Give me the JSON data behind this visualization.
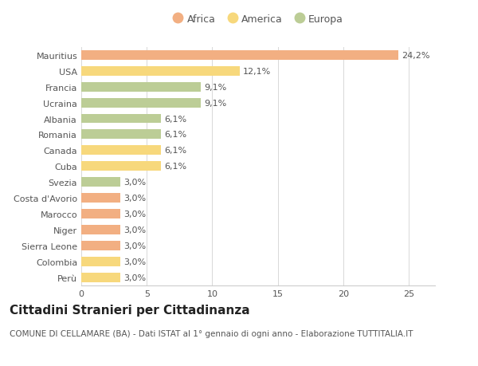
{
  "categories": [
    "Mauritius",
    "USA",
    "Francia",
    "Ucraina",
    "Albania",
    "Romania",
    "Canada",
    "Cuba",
    "Svezia",
    "Costa d'Avorio",
    "Marocco",
    "Niger",
    "Sierra Leone",
    "Colombia",
    "Perù"
  ],
  "values": [
    24.2,
    12.1,
    9.1,
    9.1,
    6.1,
    6.1,
    6.1,
    6.1,
    3.0,
    3.0,
    3.0,
    3.0,
    3.0,
    3.0,
    3.0
  ],
  "labels": [
    "24,2%",
    "12,1%",
    "9,1%",
    "9,1%",
    "6,1%",
    "6,1%",
    "6,1%",
    "6,1%",
    "3,0%",
    "3,0%",
    "3,0%",
    "3,0%",
    "3,0%",
    "3,0%",
    "3,0%"
  ],
  "continents": [
    "Africa",
    "America",
    "Europa",
    "Europa",
    "Europa",
    "Europa",
    "America",
    "America",
    "Europa",
    "Africa",
    "Africa",
    "Africa",
    "Africa",
    "America",
    "America"
  ],
  "colors": {
    "Africa": "#F2AF82",
    "America": "#F7D87C",
    "Europa": "#BCCD96"
  },
  "title": "Cittadini Stranieri per Cittadinanza",
  "subtitle": "COMUNE DI CELLAMARE (BA) - Dati ISTAT al 1° gennaio di ogni anno - Elaborazione TUTTITALIA.IT",
  "xlim": [
    0,
    27
  ],
  "xticks": [
    0,
    5,
    10,
    15,
    20,
    25
  ],
  "background_color": "#ffffff",
  "grid_color": "#d8d8d8",
  "bar_height": 0.6,
  "title_fontsize": 11,
  "subtitle_fontsize": 7.5,
  "tick_fontsize": 8,
  "label_fontsize": 8,
  "legend_fontsize": 9
}
